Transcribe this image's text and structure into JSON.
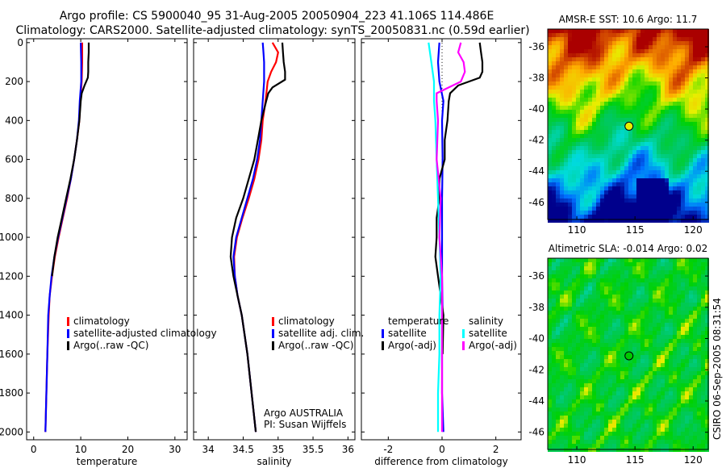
{
  "title_line1": "Argo profile: CS 5900040_95 31-Aug-2005 20050904_223 41.106S 114.486E",
  "title_line2": "Climatology: CARS2000. Satellite-adjusted climatology: synTS_20050831.nc (0.59d earlier)",
  "footer_stamp": "CSIRO 06-Sep-2005 08:31:54",
  "colors": {
    "red": "#ff0000",
    "blue": "#0000ff",
    "black": "#000000",
    "cyan": "#00ffff",
    "magenta": "#ff00ff"
  },
  "chart_data": [
    {
      "type": "line",
      "xlabel": "temperature",
      "ylabel": "",
      "xlim": [
        -1.5,
        32.6
      ],
      "ylim": [
        2040,
        -20
      ],
      "xticks": [
        0,
        10,
        20,
        30
      ],
      "yticks": [
        0,
        200,
        400,
        600,
        800,
        1000,
        1200,
        1400,
        1600,
        1800,
        2000
      ],
      "legend": {
        "placement": "bottom-center",
        "entries": [
          "climatology",
          "satellite-adjusted climatology",
          "Argo(..raw -QC)"
        ]
      },
      "series": [
        {
          "name": "climatology",
          "color": "red",
          "depth": [
            0,
            100,
            200,
            300,
            400,
            500,
            600,
            700,
            800,
            900,
            1000,
            1100,
            1200,
            1300,
            1400,
            1600,
            1800,
            2000
          ],
          "values": [
            10.3,
            10.3,
            10.2,
            9.9,
            9.7,
            9.2,
            8.6,
            7.9,
            7.1,
            6.2,
            5.3,
            4.5,
            3.9,
            3.4,
            3.2,
            2.9,
            2.7,
            2.5
          ]
        },
        {
          "name": "satellite-adjusted climatology",
          "color": "blue",
          "depth": [
            0,
            100,
            200,
            300,
            400,
            500,
            600,
            700,
            800,
            900,
            1000,
            1100,
            1200,
            1300,
            1400,
            1600,
            1800,
            2000
          ],
          "values": [
            10.0,
            10.1,
            10.1,
            9.8,
            9.6,
            9.2,
            8.6,
            7.9,
            7.0,
            6.1,
            5.2,
            4.4,
            3.8,
            3.4,
            3.1,
            2.9,
            2.7,
            2.5
          ]
        },
        {
          "name": "Argo(..raw -QC)",
          "color": "black",
          "depth": [
            0,
            50,
            100,
            150,
            180,
            220,
            260,
            300,
            400,
            500,
            600,
            700,
            800,
            900,
            1000,
            1100,
            1200
          ],
          "values": [
            11.7,
            11.7,
            11.6,
            11.6,
            11.5,
            10.8,
            10.2,
            10.0,
            9.7,
            9.2,
            8.6,
            7.8,
            6.9,
            6.0,
            5.1,
            4.4,
            3.9
          ]
        }
      ]
    },
    {
      "type": "line",
      "xlabel": "salinity",
      "ylabel": "",
      "xlim": [
        33.79,
        36.1
      ],
      "ylim": [
        2040,
        -20
      ],
      "xticks": [
        34,
        34.5,
        35,
        35.5,
        36
      ],
      "legend": {
        "placement": "bottom-center",
        "entries": [
          "climatology",
          "satellite adj. clim.",
          "Argo(..raw -QC)"
        ]
      },
      "annotation": [
        "Argo AUSTRALIA",
        "PI: Susan Wijffels"
      ],
      "series": [
        {
          "name": "climatology",
          "color": "red",
          "depth": [
            0,
            50,
            100,
            150,
            200,
            300,
            400,
            500,
            600,
            700,
            800,
            900,
            1000,
            1100,
            1200,
            1300,
            1400,
            1600,
            1800,
            2000
          ],
          "values": [
            34.92,
            35.0,
            34.97,
            34.9,
            34.85,
            34.82,
            34.78,
            34.76,
            34.72,
            34.66,
            34.58,
            34.49,
            34.41,
            34.37,
            34.38,
            34.42,
            34.48,
            34.56,
            34.62,
            34.68
          ]
        },
        {
          "name": "satellite adj. clim.",
          "color": "blue",
          "depth": [
            0,
            50,
            100,
            150,
            200,
            300,
            400,
            500,
            600,
            700,
            800,
            900,
            1000,
            1100,
            1200,
            1300,
            1400,
            1600,
            1800,
            2000
          ],
          "values": [
            34.78,
            34.79,
            34.8,
            34.8,
            34.8,
            34.78,
            34.76,
            34.74,
            34.7,
            34.64,
            34.56,
            34.48,
            34.4,
            34.36,
            34.38,
            34.42,
            34.48,
            34.56,
            34.62,
            34.68
          ]
        },
        {
          "name": "Argo(..raw -QC)",
          "color": "black",
          "depth": [
            0,
            50,
            100,
            150,
            190,
            230,
            260,
            300,
            400,
            500,
            600,
            700,
            800,
            900,
            1000,
            1100,
            1200,
            1300,
            1400,
            1600,
            1800,
            2000
          ],
          "values": [
            35.06,
            35.07,
            35.08,
            35.1,
            35.1,
            34.92,
            34.86,
            34.83,
            34.76,
            34.71,
            34.66,
            34.58,
            34.5,
            34.4,
            34.34,
            34.32,
            34.36,
            34.42,
            34.48,
            34.56,
            34.62,
            34.68
          ]
        }
      ]
    },
    {
      "type": "line",
      "xlabel": "difference from climatology",
      "ylabel": "",
      "xlim": [
        -3,
        2.94
      ],
      "ylim": [
        2040,
        -20
      ],
      "xticks": [
        -2,
        0,
        2
      ],
      "legend": {
        "placement": "bottom-center",
        "groups": [
          {
            "title": "temperature",
            "entries": [
              "satellite",
              "Argo(-adj)"
            ]
          },
          {
            "title": "salinity",
            "entries": [
              "satellite",
              "Argo(-adj)"
            ]
          }
        ]
      },
      "series": [
        {
          "name": "temperature satellite",
          "color": "blue",
          "depth": [
            0,
            100,
            200,
            300,
            400,
            600,
            800,
            1000,
            1200,
            1400,
            1600,
            1800,
            2000
          ],
          "values": [
            -0.1,
            -0.15,
            -0.1,
            0.05,
            0.0,
            0.02,
            0.0,
            0.0,
            0.0,
            0.02,
            0.0,
            0.0,
            0.05
          ]
        },
        {
          "name": "temperature Argo(-adj)",
          "color": "black",
          "depth": [
            0,
            50,
            100,
            150,
            180,
            220,
            260,
            300,
            400,
            500,
            600,
            700,
            800,
            900,
            1000,
            1100,
            1200,
            1400,
            1600
          ],
          "values": [
            1.4,
            1.45,
            1.5,
            1.5,
            1.4,
            0.6,
            0.3,
            0.25,
            0.2,
            0.1,
            0.1,
            -0.1,
            -0.1,
            -0.2,
            -0.2,
            -0.25,
            -0.15,
            0.05,
            0.02
          ]
        },
        {
          "name": "salinity satellite",
          "color": "cyan",
          "depth": [
            0,
            100,
            200,
            300,
            400,
            600,
            800,
            1000,
            1200,
            1400,
            1600,
            1800,
            2000
          ],
          "values": [
            -0.5,
            -0.4,
            -0.3,
            -0.3,
            -0.25,
            -0.2,
            -0.15,
            -0.1,
            -0.05,
            -0.1,
            -0.1,
            -0.15,
            -0.15
          ]
        },
        {
          "name": "salinity Argo(-adj)",
          "color": "magenta",
          "depth": [
            0,
            50,
            100,
            150,
            200,
            260,
            300,
            400,
            600,
            800,
            1000,
            1200,
            1400,
            1600,
            1800,
            2000
          ],
          "values": [
            0.7,
            0.6,
            0.8,
            0.85,
            0.7,
            -0.2,
            -0.2,
            -0.15,
            -0.2,
            -0.05,
            -0.1,
            0.0,
            0.0,
            0.0,
            0.0,
            0.0
          ]
        }
      ]
    },
    {
      "type": "heatmap",
      "title": "AMSR-E SST: 10.6 Argo: 11.7",
      "xlim": [
        107.5,
        121.3
      ],
      "ylim": [
        -47.1,
        -34.86
      ],
      "xticks": [
        110,
        115,
        120
      ],
      "yticks": [
        -36,
        -38,
        -40,
        -42,
        -44,
        -46
      ],
      "marker": {
        "lon": 114.486,
        "lat": -41.106,
        "color": "#e6f000"
      }
    },
    {
      "type": "heatmap",
      "title": "Altimetric SLA: -0.014 Argo: 0.02",
      "xlim": [
        107.5,
        121.3
      ],
      "ylim": [
        -47.1,
        -34.86
      ],
      "xticks": [
        110,
        115,
        120
      ],
      "yticks": [
        -36,
        -38,
        -40,
        -42,
        -44,
        -46
      ],
      "marker": {
        "lon": 114.486,
        "lat": -41.106,
        "color": "#00c800"
      }
    }
  ]
}
